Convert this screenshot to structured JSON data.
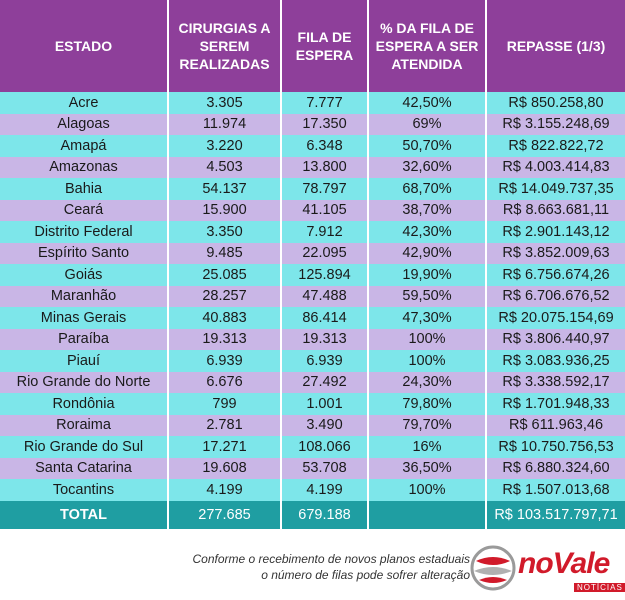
{
  "headers": [
    "ESTADO",
    "CIRURGIAS A SEREM REALIZADAS",
    "FILA DE ESPERA",
    "% DA FILA DE ESPERA A SER ATENDIDA",
    "REPASSE (1/3)"
  ],
  "rows": [
    [
      "Acre",
      "3.305",
      "7.777",
      "42,50%",
      "R$ 850.258,80"
    ],
    [
      "Alagoas",
      "11.974",
      "17.350",
      "69%",
      "R$ 3.155.248,69"
    ],
    [
      "Amapá",
      "3.220",
      "6.348",
      "50,70%",
      "R$ 822.822,72"
    ],
    [
      "Amazonas",
      "4.503",
      "13.800",
      "32,60%",
      "R$ 4.003.414,83"
    ],
    [
      "Bahia",
      "54.137",
      "78.797",
      "68,70%",
      "R$ 14.049.737,35"
    ],
    [
      "Ceará",
      "15.900",
      "41.105",
      "38,70%",
      "R$ 8.663.681,11"
    ],
    [
      "Distrito Federal",
      "3.350",
      "7.912",
      "42,30%",
      "R$ 2.901.143,12"
    ],
    [
      "Espírito Santo",
      "9.485",
      "22.095",
      "42,90%",
      "R$ 3.852.009,63"
    ],
    [
      "Goiás",
      "25.085",
      "125.894",
      "19,90%",
      "R$ 6.756.674,26"
    ],
    [
      "Maranhão",
      "28.257",
      "47.488",
      "59,50%",
      "R$ 6.706.676,52"
    ],
    [
      "Minas Gerais",
      "40.883",
      "86.414",
      "47,30%",
      "R$ 20.075.154,69"
    ],
    [
      "Paraíba",
      "19.313",
      "19.313",
      "100%",
      "R$ 3.806.440,97"
    ],
    [
      "Piauí",
      "6.939",
      "6.939",
      "100%",
      "R$ 3.083.936,25"
    ],
    [
      "Rio Grande do Norte",
      "6.676",
      "27.492",
      "24,30%",
      "R$ 3.338.592,17"
    ],
    [
      "Rondônia",
      "799",
      "1.001",
      "79,80%",
      "R$ 1.701.948,33"
    ],
    [
      "Roraima",
      "2.781",
      "3.490",
      "79,70%",
      "R$ 611.963,46"
    ],
    [
      "Rio Grande do Sul",
      "17.271",
      "108.066",
      "16%",
      "R$ 10.750.756,53"
    ],
    [
      "Santa Catarina",
      "19.608",
      "53.708",
      "36,50%",
      "R$ 6.880.324,60"
    ],
    [
      "Tocantins",
      "4.199",
      "4.199",
      "100%",
      "R$ 1.507.013,68"
    ]
  ],
  "total": [
    "TOTAL",
    "277.685",
    "679.188",
    "",
    "R$ 103.517.797,71"
  ],
  "footer": {
    "line1": "Conforme o recebimento de novos planos estaduais",
    "line2": "o número de filas pode sofrer alteração"
  },
  "logo": {
    "prefix": "no",
    "brand": "Vale",
    "sub": "NOTÍCIAS",
    "globe_icon": "globe-icon"
  },
  "colors": {
    "header": "#8e3f9a",
    "row_cyan": "#7de6ea",
    "row_lilac": "#c9b6e6",
    "total": "#1f9ea2",
    "brand_red": "#d11a2a"
  }
}
